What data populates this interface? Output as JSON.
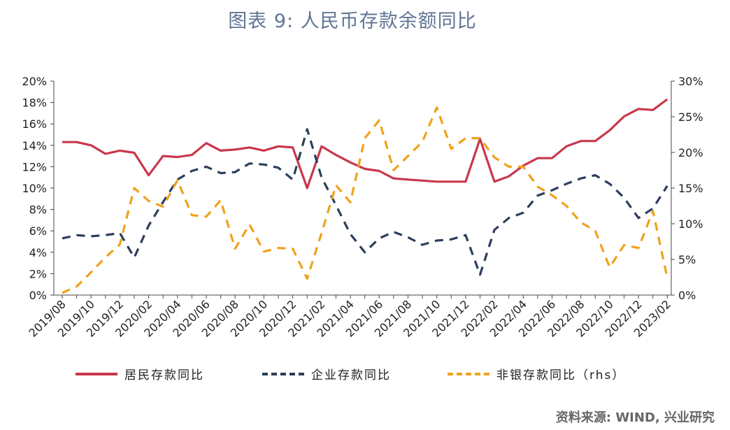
{
  "title": "图表 9:  人民币存款余额同比",
  "source": "资料来源: WIND, 兴业研究",
  "legend": {
    "resident": "居民存款同比",
    "corporate": "企业存款同比",
    "nonbank": "非银存款同比（rhs）"
  },
  "colors": {
    "resident": "#c9374c",
    "corporate": "#2c3e5c",
    "nonbank": "#f0a21b",
    "axis": "#444444"
  },
  "chart_data": {
    "type": "line",
    "x": [
      "2019/08",
      "2019/09",
      "2019/10",
      "2019/11",
      "2019/12",
      "2020/01",
      "2020/02",
      "2020/03",
      "2020/04",
      "2020/05",
      "2020/06",
      "2020/07",
      "2020/08",
      "2020/09",
      "2020/10",
      "2020/11",
      "2020/12",
      "2021/01",
      "2021/02",
      "2021/03",
      "2021/04",
      "2021/05",
      "2021/06",
      "2021/07",
      "2021/08",
      "2021/09",
      "2021/10",
      "2021/11",
      "2021/12",
      "2022/01",
      "2022/02",
      "2022/03",
      "2022/04",
      "2022/05",
      "2022/06",
      "2022/07",
      "2022/08",
      "2022/09",
      "2022/10",
      "2022/11",
      "2022/12",
      "2023/01",
      "2023/02"
    ],
    "x_tick_labels": [
      "2019/08",
      "2019/10",
      "2019/12",
      "2020/02",
      "2020/04",
      "2020/06",
      "2020/08",
      "2020/10",
      "2020/12",
      "2021/02",
      "2021/04",
      "2021/06",
      "2021/08",
      "2021/10",
      "2021/12",
      "2022/02",
      "2022/04",
      "2022/06",
      "2022/08",
      "2022/10",
      "2022/12",
      "2023/02"
    ],
    "y_left": {
      "ylim": [
        0,
        20
      ],
      "ticks": [
        "0%",
        "2%",
        "4%",
        "6%",
        "8%",
        "10%",
        "12%",
        "14%",
        "16%",
        "18%",
        "20%"
      ]
    },
    "y_right": {
      "ylim": [
        0,
        30
      ],
      "ticks": [
        "0%",
        "5%",
        "10%",
        "15%",
        "20%",
        "25%",
        "30%"
      ]
    },
    "series": [
      {
        "name": "居民存款同比",
        "axis": "left",
        "style": "solid",
        "values": [
          14.3,
          14.3,
          14.0,
          13.2,
          13.5,
          13.3,
          11.2,
          13.0,
          12.9,
          13.1,
          14.2,
          13.5,
          13.6,
          13.8,
          13.5,
          13.9,
          13.8,
          10.0,
          13.9,
          13.1,
          12.4,
          11.8,
          11.6,
          10.9,
          10.8,
          10.7,
          10.6,
          10.6,
          10.6,
          14.6,
          10.6,
          11.1,
          12.1,
          12.8,
          12.8,
          13.9,
          14.4,
          14.4,
          15.4,
          16.7,
          17.4,
          17.3,
          18.3
        ]
      },
      {
        "name": "企业存款同比",
        "axis": "left",
        "style": "dashed",
        "values": [
          5.3,
          5.6,
          5.5,
          5.6,
          5.8,
          3.5,
          6.5,
          8.7,
          10.8,
          11.6,
          12.0,
          11.4,
          11.5,
          12.3,
          12.2,
          11.9,
          10.8,
          15.5,
          11.0,
          8.4,
          5.7,
          4.0,
          5.3,
          5.9,
          5.4,
          4.7,
          5.1,
          5.2,
          5.6,
          1.9,
          6.1,
          7.2,
          7.7,
          9.3,
          9.8,
          10.4,
          10.9,
          11.2,
          10.4,
          9.1,
          7.2,
          8.1,
          10.2
        ]
      },
      {
        "name": "非银存款同比（rhs）",
        "axis": "right",
        "style": "dashed",
        "values": [
          0.3,
          1.2,
          3.2,
          5.3,
          7.1,
          15.0,
          13.2,
          12.4,
          16.1,
          11.2,
          11.0,
          13.3,
          6.5,
          9.9,
          6.1,
          6.6,
          6.5,
          2.3,
          8.7,
          15.4,
          13.0,
          22.0,
          24.5,
          17.5,
          19.5,
          21.5,
          26.3,
          20.5,
          22.0,
          22.0,
          19.3,
          18.0,
          18.0,
          15.2,
          14.0,
          12.5,
          10.2,
          9.0,
          3.9,
          7.0,
          6.6,
          11.8,
          2.4
        ]
      }
    ]
  }
}
